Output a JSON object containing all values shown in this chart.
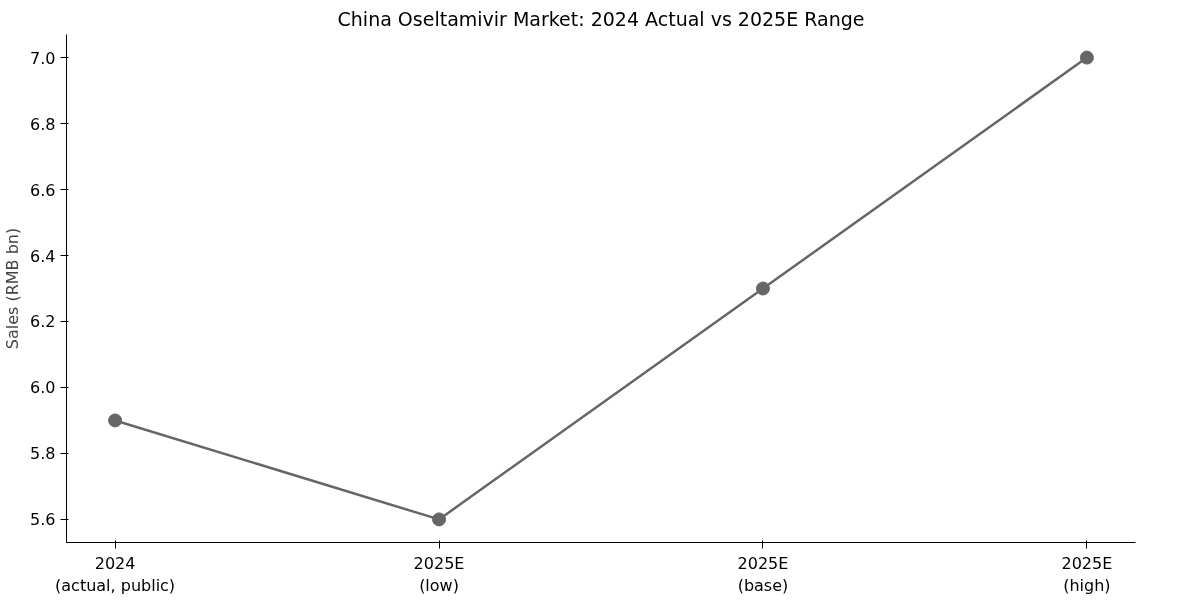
{
  "chart_data": {
    "type": "line",
    "title": "China Oseltamivir Market: 2024 Actual vs 2025E Range",
    "ylabel": "Sales (RMB bn)",
    "categories": [
      "2024\n(actual, public)",
      "2025E\n(low)",
      "2025E\n(base)",
      "2025E\n(high)"
    ],
    "series": [
      {
        "color": "#666666",
        "values": [
          5.9,
          5.6,
          6.3,
          7.0
        ]
      }
    ],
    "ylim": [
      5.53,
      7.07
    ],
    "yticks": [
      5.6,
      5.8,
      {
        "value": 6,
        "label": "6.0"
      },
      6.2,
      6.4,
      6.6,
      6.8,
      {
        "value": 7,
        "label": "7.0"
      }
    ],
    "grid": false,
    "marker": "circle",
    "line_style": "solid"
  }
}
